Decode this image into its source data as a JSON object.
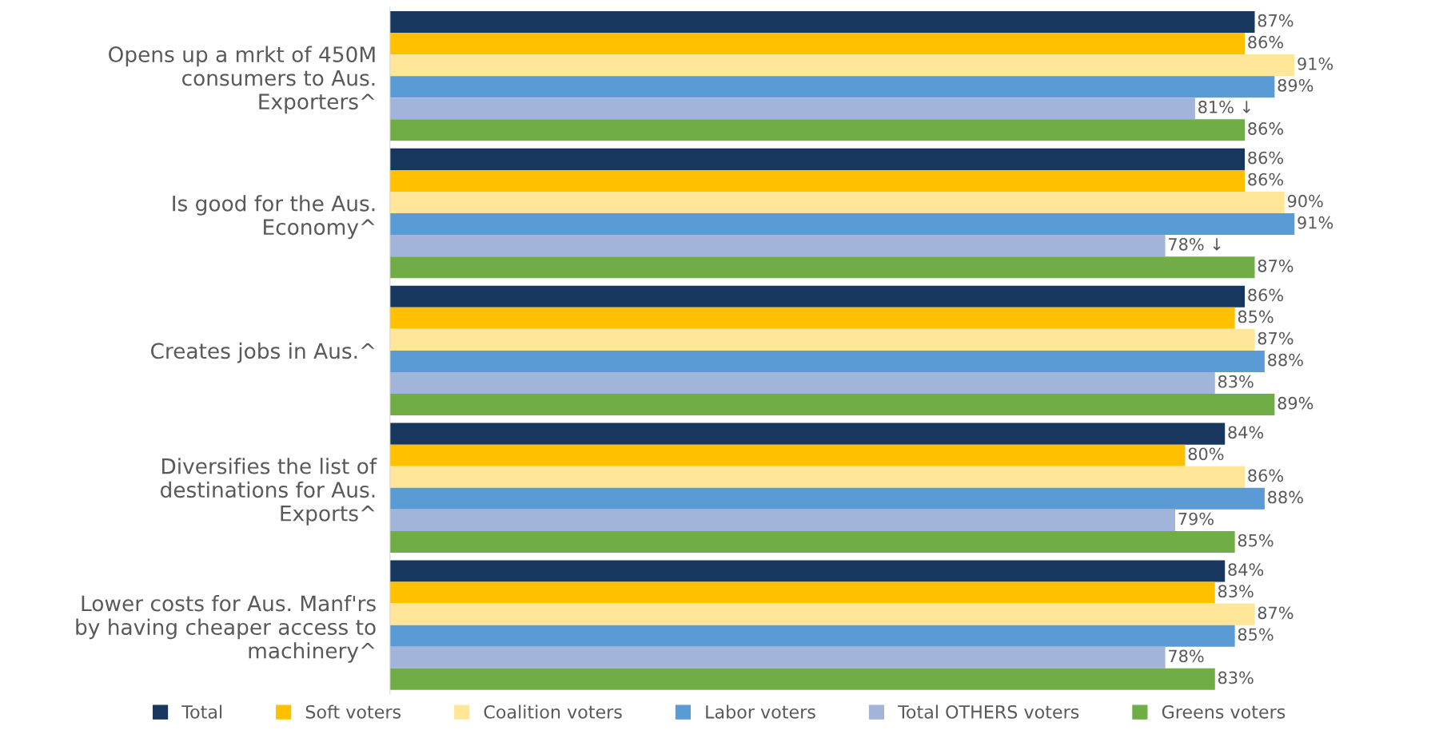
{
  "chart_data": {
    "type": "bar",
    "orientation": "horizontal",
    "tick_labels": "y",
    "grid": false,
    "legend": "bottom",
    "categories": [
      "Opens up a mrkt of 450M\nconsumers to Aus.\nExporters^",
      "Is good for the Aus.\nEconomy^",
      "Creates jobs in Aus.^",
      "Diversifies the list of\ndestinations for Aus.\nExports^",
      "Lower costs for Aus. Manf'rs\nby having cheaper access to\nmachinery^"
    ],
    "series": [
      {
        "name": "Total",
        "color": "#17375e",
        "values": [
          87,
          86,
          86,
          84,
          84
        ],
        "value_labels": [
          "87%",
          "86%",
          "86%",
          "84%",
          "84%"
        ]
      },
      {
        "name": "Soft voters",
        "color": "#ffc000",
        "values": [
          86,
          86,
          85,
          80,
          83
        ],
        "value_labels": [
          "86%",
          "86%",
          "85%",
          "80%",
          "83%"
        ]
      },
      {
        "name": "Coalition voters",
        "color": "#ffe699",
        "values": [
          91,
          90,
          87,
          86,
          87
        ],
        "value_labels": [
          "91%",
          "90%",
          "87%",
          "86%",
          "87%"
        ]
      },
      {
        "name": "Labor voters",
        "color": "#5b9bd5",
        "values": [
          89,
          91,
          88,
          88,
          85
        ],
        "value_labels": [
          "89%",
          "91%",
          "88%",
          "88%",
          "85%"
        ]
      },
      {
        "name": "Total OTHERS voters",
        "color": "#a2b4da",
        "values": [
          81,
          78,
          83,
          79,
          78
        ],
        "value_labels": [
          "81% ↓",
          "78% ↓",
          "83%",
          "79%",
          "78%"
        ]
      },
      {
        "name": "Greens voters",
        "color": "#70ad47",
        "values": [
          86,
          87,
          89,
          85,
          83
        ],
        "value_labels": [
          "86%",
          "87%",
          "89%",
          "85%",
          "83%"
        ]
      }
    ]
  }
}
